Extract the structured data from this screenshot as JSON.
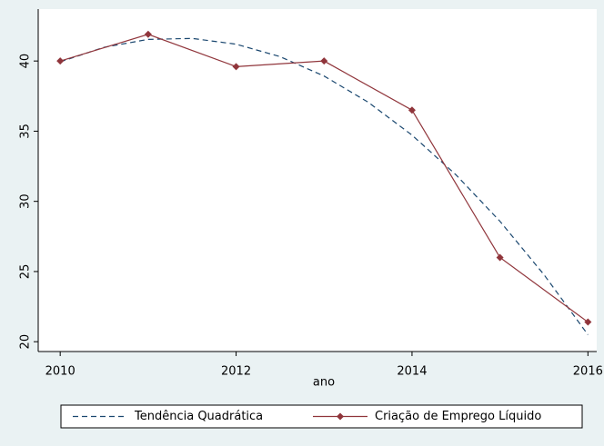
{
  "chart_data": {
    "type": "line",
    "x_label": "ano",
    "xlim": [
      2009.75,
      2016.1
    ],
    "xticks": [
      2010,
      2012,
      2014,
      2016
    ],
    "ylim": [
      19.3,
      43.7
    ],
    "yticks": [
      20,
      25,
      30,
      35,
      40
    ],
    "series": [
      {
        "name": "Tendência Quadrática",
        "color": "#1a476f",
        "dashed": true,
        "x": [
          2010,
          2010.5,
          2011,
          2011.5,
          2012,
          2012.5,
          2013,
          2013.5,
          2014,
          2014.5,
          2015,
          2015.5,
          2016
        ],
        "values": [
          39.94,
          40.98,
          41.54,
          41.61,
          41.2,
          40.31,
          38.93,
          37.07,
          34.72,
          31.89,
          28.58,
          24.78,
          20.5
        ]
      },
      {
        "name": "Criação de Emprego Líquido",
        "color": "#90353b",
        "marker": "diamond",
        "x": [
          2010,
          2011,
          2012,
          2013,
          2014,
          2015,
          2016
        ],
        "values": [
          40.0,
          41.9,
          39.6,
          40.0,
          36.5,
          26.0,
          21.4
        ]
      }
    ]
  }
}
